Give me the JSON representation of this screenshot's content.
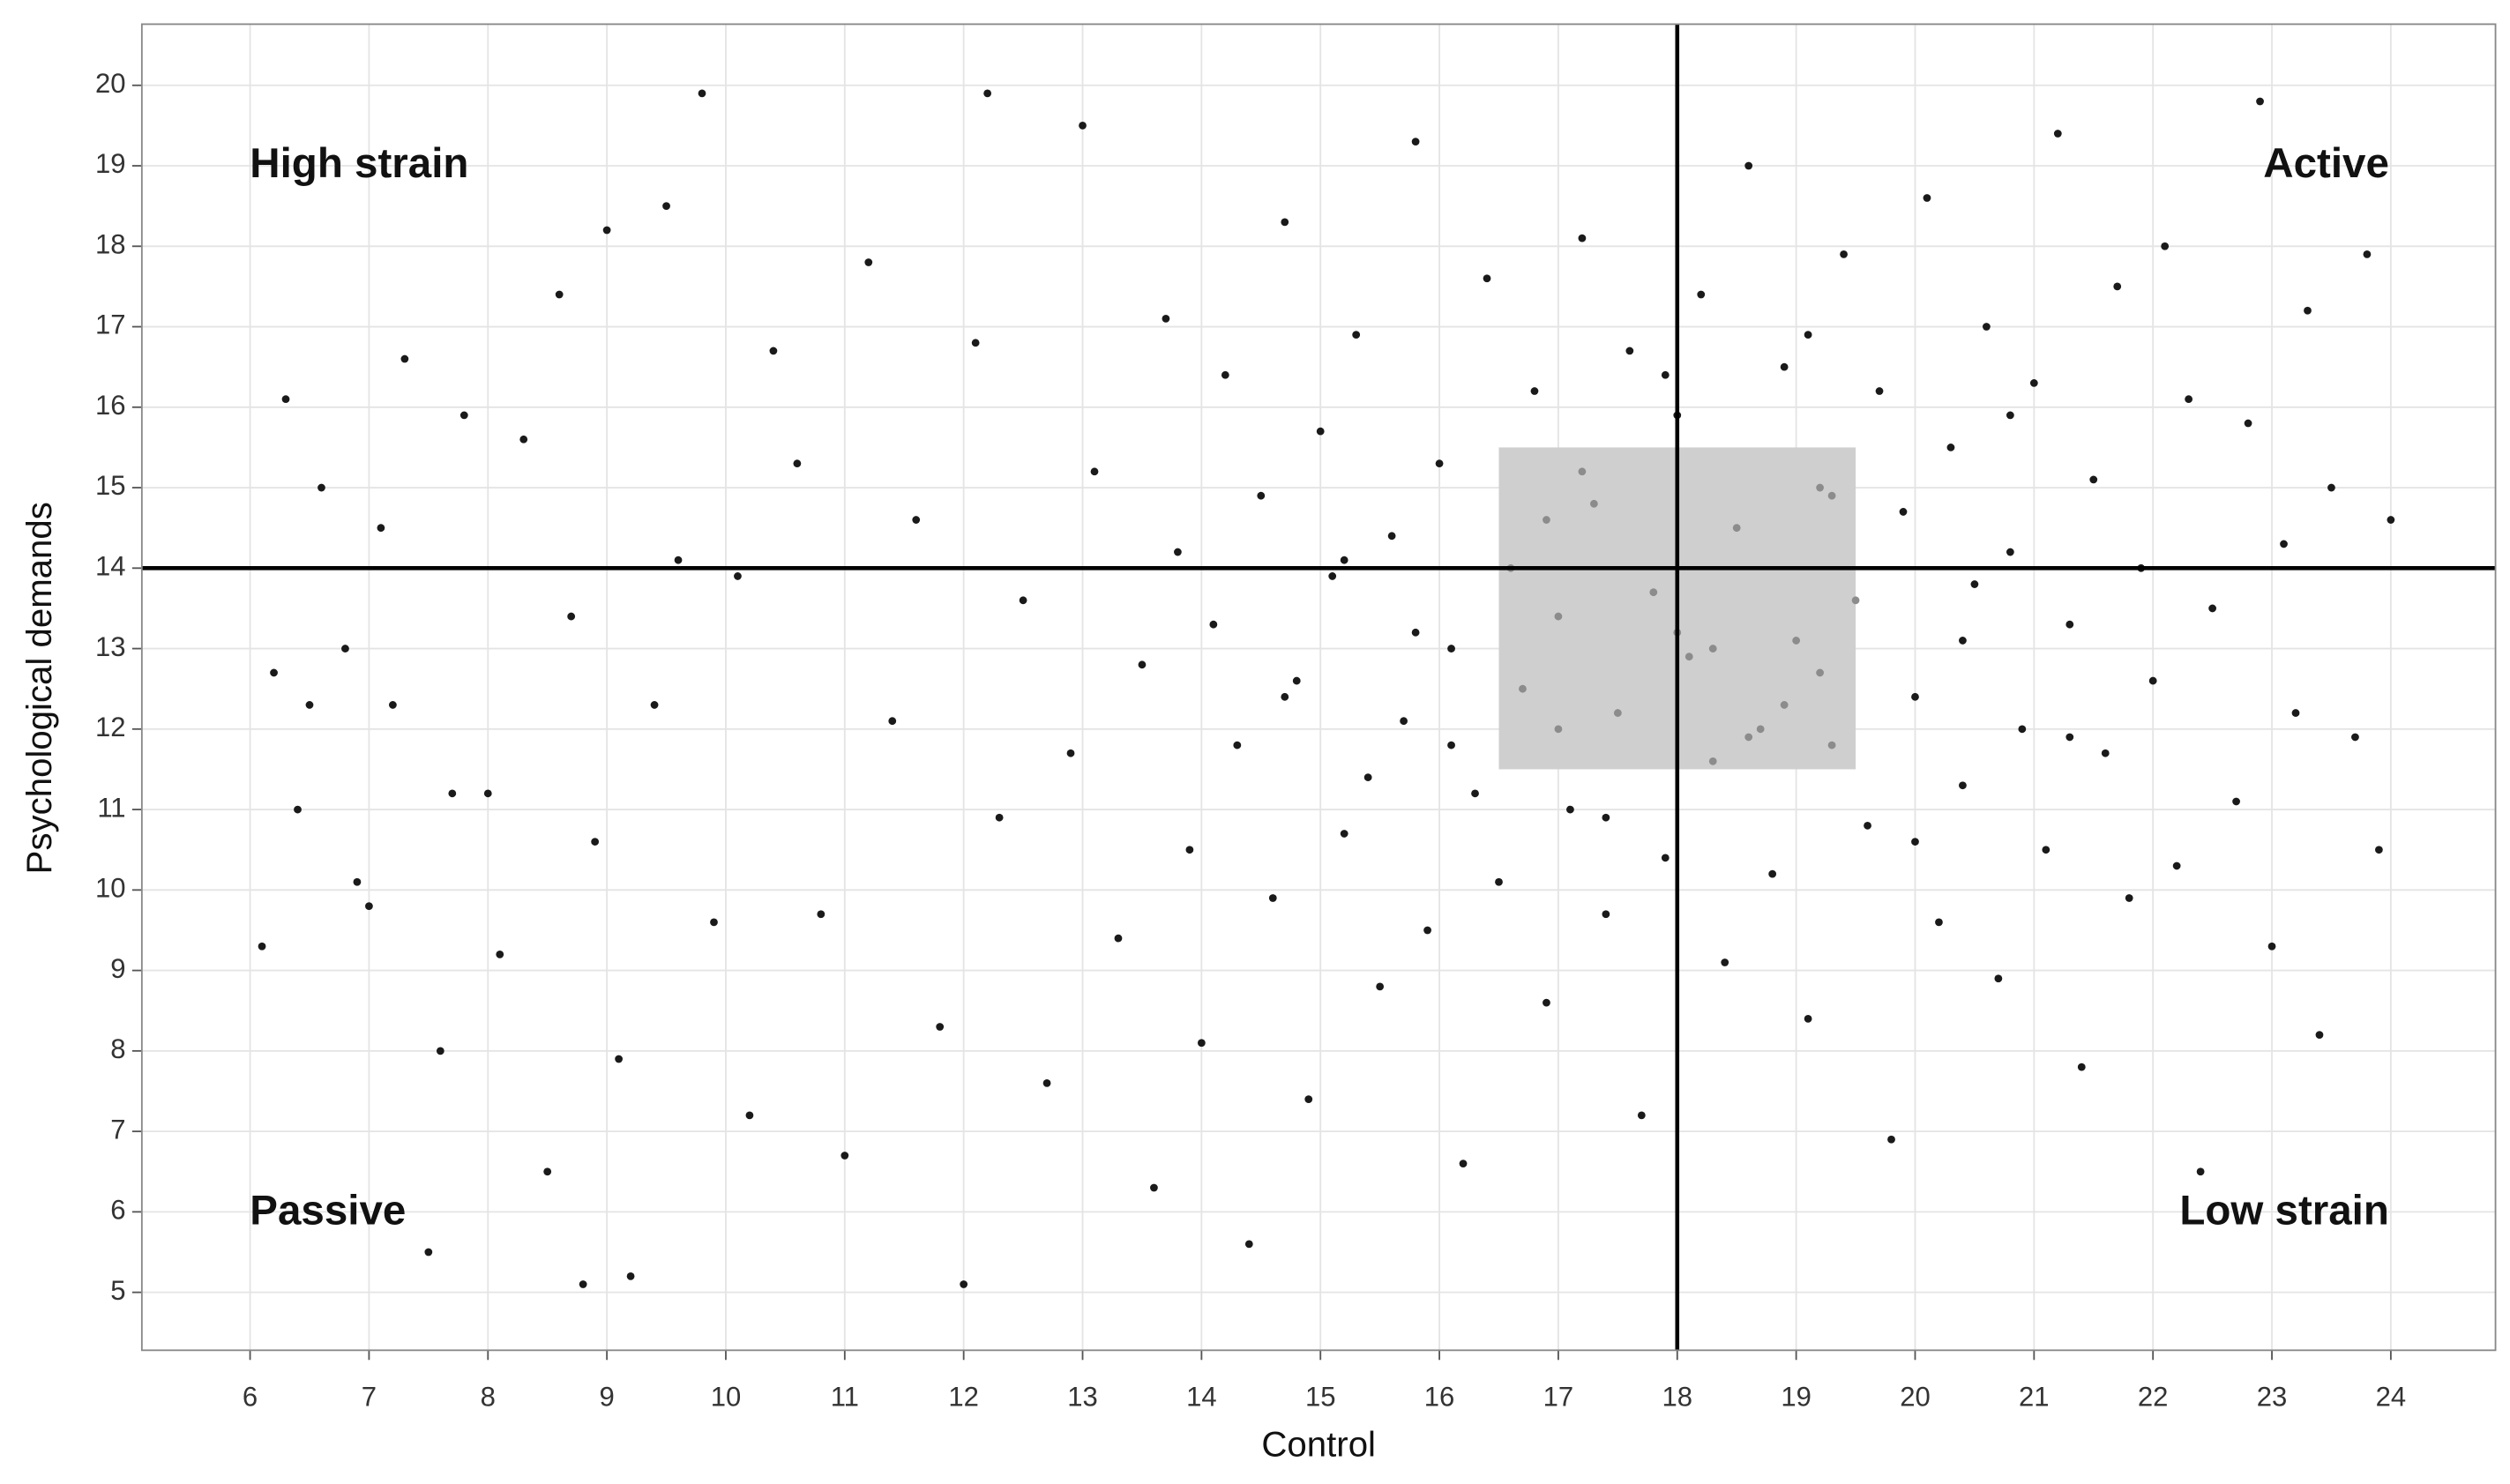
{
  "chart_data": {
    "type": "scatter",
    "x_label": "Control",
    "y_label": "Psychological demands",
    "xlim": [
      5.09,
      24.88
    ],
    "ylim": [
      4.28,
      20.76
    ],
    "xticks": [
      6,
      7,
      8,
      9,
      10,
      11,
      12,
      13,
      14,
      15,
      16,
      17,
      18,
      19,
      20,
      21,
      22,
      23,
      24
    ],
    "yticks": [
      5,
      6,
      7,
      8,
      9,
      10,
      11,
      12,
      13,
      14,
      15,
      16,
      17,
      18,
      19,
      20
    ],
    "grid": true,
    "color": "#1a1a1a",
    "vline": 18,
    "hline": 14,
    "highlight": {
      "xlim": [
        16.5,
        19.5
      ],
      "ylim": [
        11.5,
        15.5
      ],
      "fill": "#cfcfcf",
      "color": "#8c8c8c"
    },
    "annotations": [
      "High strain",
      "Active",
      "Passive",
      "Low strain"
    ],
    "x": [
      6.1,
      6.2,
      6.3,
      6.4,
      6.5,
      6.6,
      6.8,
      6.9,
      7.0,
      7.1,
      7.2,
      7.3,
      7.5,
      7.6,
      7.7,
      7.8,
      8.0,
      8.1,
      8.3,
      8.5,
      8.6,
      8.7,
      8.8,
      8.9,
      9.0,
      9.1,
      9.2,
      9.4,
      9.5,
      9.6,
      9.8,
      9.9,
      10.1,
      10.2,
      10.4,
      10.6,
      10.8,
      11.0,
      11.2,
      11.4,
      11.6,
      11.8,
      12.0,
      12.1,
      12.2,
      12.3,
      12.5,
      12.7,
      12.9,
      13.0,
      13.1,
      13.3,
      13.5,
      13.6,
      13.7,
      13.8,
      13.9,
      14.0,
      14.1,
      14.2,
      14.3,
      14.4,
      14.5,
      14.6,
      14.7,
      14.8,
      14.9,
      15.0,
      15.1,
      15.2,
      15.3,
      15.4,
      15.5,
      15.6,
      15.7,
      15.8,
      15.9,
      16.0,
      16.1,
      16.2,
      16.3,
      16.4,
      16.5,
      16.6,
      16.7,
      16.8,
      16.9,
      17.0,
      17.1,
      17.2,
      17.3,
      17.4,
      17.5,
      17.6,
      17.7,
      17.8,
      17.9,
      18.0,
      18.1,
      18.2,
      18.3,
      18.4,
      18.5,
      18.6,
      18.7,
      18.8,
      18.9,
      19.0,
      19.1,
      19.2,
      19.3,
      19.4,
      19.5,
      19.6,
      19.7,
      19.8,
      19.9,
      20.0,
      20.1,
      20.2,
      20.3,
      20.4,
      20.5,
      20.6,
      20.7,
      20.8,
      20.9,
      21.0,
      21.1,
      21.2,
      21.3,
      21.4,
      21.5,
      21.6,
      21.7,
      21.8,
      21.9,
      22.0,
      22.1,
      22.2,
      22.3,
      22.4,
      22.5,
      22.7,
      22.8,
      22.9,
      23.0,
      23.1,
      23.2,
      23.3,
      23.4,
      23.5,
      23.7,
      23.8,
      23.9,
      24.0,
      15.2,
      16.1,
      17.4,
      17.2,
      18.3,
      18.9,
      19.3,
      20.4,
      20.8,
      21.3,
      14.7,
      15.8,
      17.9,
      19.1,
      20.0,
      17.0,
      18.6,
      16.9,
      19.2,
      18.0
    ],
    "y": [
      9.3,
      12.7,
      16.1,
      11.0,
      12.3,
      15.0,
      13.0,
      10.1,
      9.8,
      14.5,
      12.3,
      16.6,
      5.5,
      8.0,
      11.2,
      15.9,
      11.2,
      9.2,
      15.6,
      6.5,
      17.4,
      13.4,
      5.1,
      10.6,
      18.2,
      7.9,
      5.2,
      12.3,
      18.5,
      14.1,
      19.9,
      9.6,
      13.9,
      7.2,
      16.7,
      15.3,
      9.7,
      6.7,
      17.8,
      12.1,
      14.6,
      8.3,
      5.1,
      16.8,
      19.9,
      10.9,
      13.6,
      7.6,
      11.7,
      19.5,
      15.2,
      9.4,
      12.8,
      6.3,
      17.1,
      14.2,
      10.5,
      8.1,
      13.3,
      16.4,
      11.8,
      5.6,
      14.9,
      9.9,
      18.3,
      12.6,
      7.4,
      15.7,
      13.9,
      10.7,
      16.9,
      11.4,
      8.8,
      14.4,
      12.1,
      19.3,
      9.5,
      15.3,
      13.0,
      6.6,
      11.2,
      17.6,
      10.1,
      14.0,
      12.5,
      16.2,
      8.6,
      13.4,
      11.0,
      18.1,
      14.8,
      9.7,
      12.2,
      16.7,
      7.2,
      13.7,
      10.4,
      15.9,
      12.9,
      17.4,
      11.6,
      9.1,
      14.5,
      19.0,
      12.0,
      10.2,
      16.5,
      13.1,
      8.4,
      15.0,
      11.8,
      17.9,
      13.6,
      10.8,
      16.2,
      6.9,
      14.7,
      12.4,
      18.6,
      9.6,
      15.5,
      11.3,
      13.8,
      17.0,
      8.9,
      14.2,
      12.0,
      16.3,
      10.5,
      19.4,
      13.3,
      7.8,
      15.1,
      11.7,
      17.5,
      9.9,
      14.0,
      12.6,
      18.0,
      10.3,
      16.1,
      6.5,
      13.5,
      11.1,
      15.8,
      19.8,
      9.3,
      14.3,
      12.2,
      17.2,
      8.2,
      15.0,
      11.9,
      17.9,
      10.5,
      14.6,
      14.1,
      11.8,
      10.9,
      15.2,
      13.0,
      12.3,
      14.9,
      13.1,
      15.9,
      11.9,
      12.4,
      13.2,
      16.4,
      16.9,
      10.6,
      12.0,
      11.9,
      14.6,
      12.7,
      13.2
    ]
  }
}
